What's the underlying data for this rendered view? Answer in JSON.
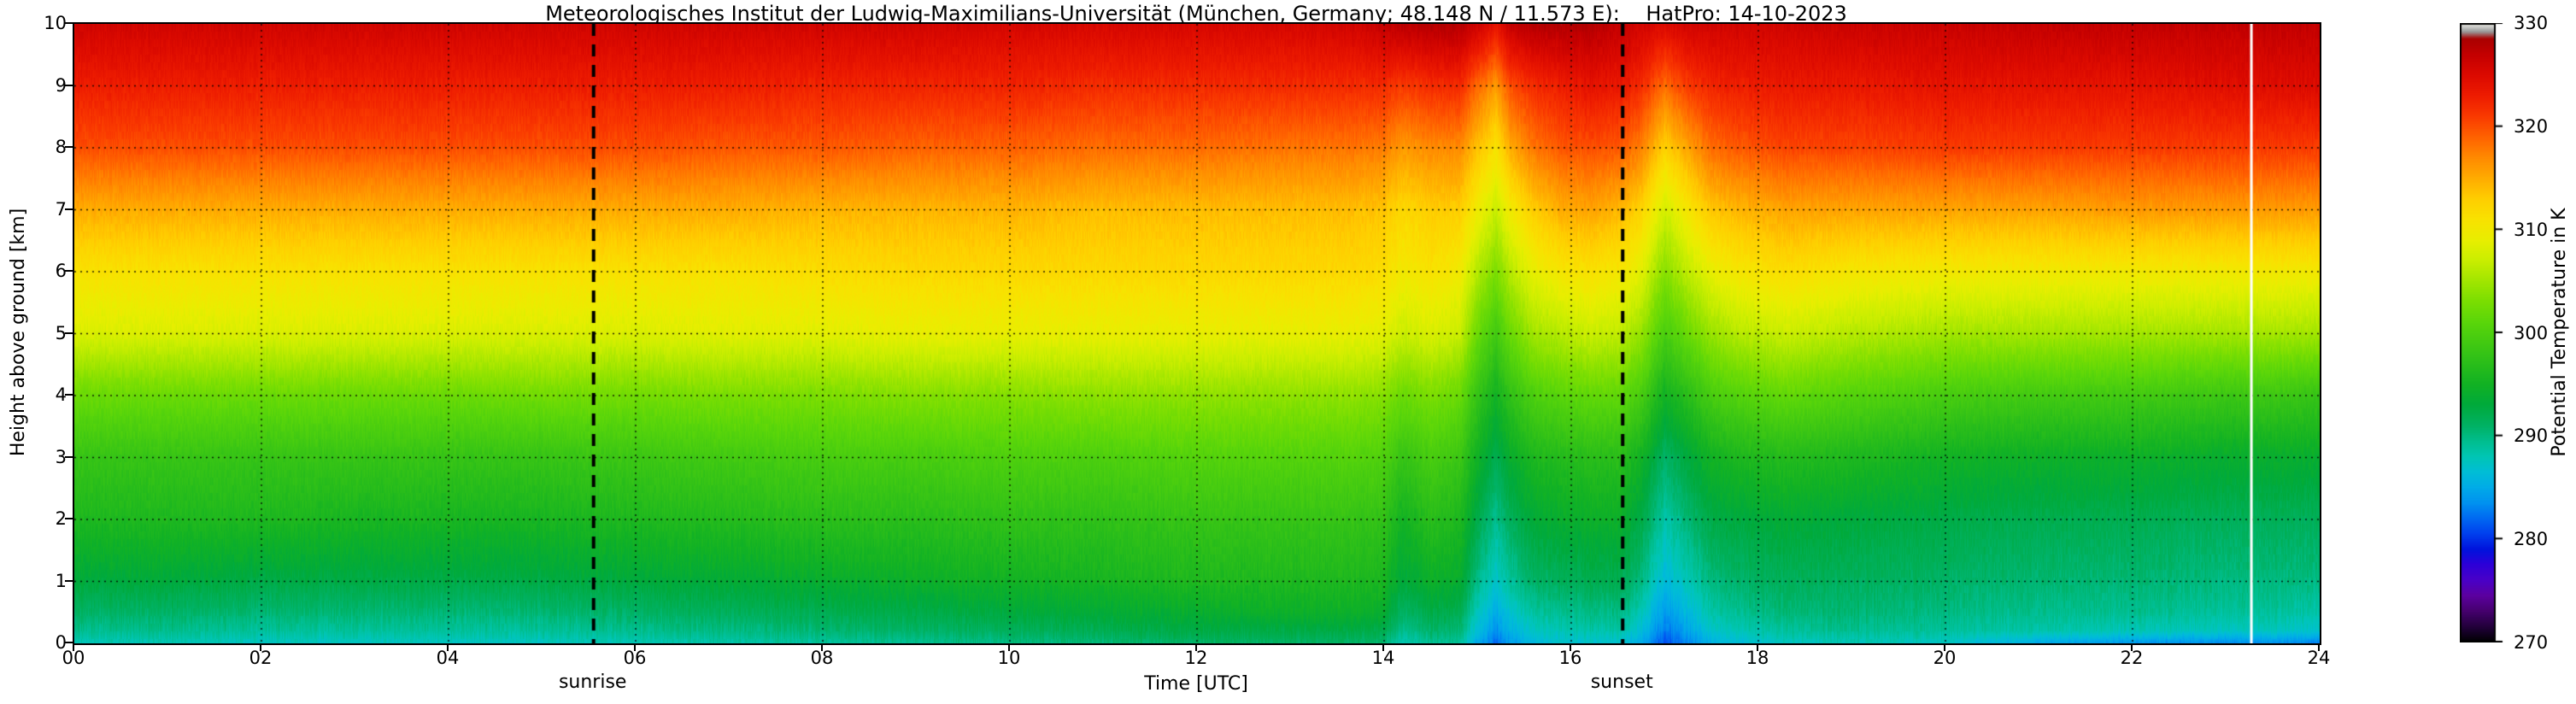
{
  "title": "Meteorologisches Institut der Ludwig-Maximilians-Universität (München, Germany; 48.148 N / 11.573 E):    HatPro: 14-10-2023",
  "axes": {
    "xlabel": "Time [UTC]",
    "ylabel": "Height above ground [km]",
    "x_ticks": [
      {
        "value": 0,
        "label": "00"
      },
      {
        "value": 2,
        "label": "02"
      },
      {
        "value": 4,
        "label": "04"
      },
      {
        "value": 6,
        "label": "06"
      },
      {
        "value": 8,
        "label": "08"
      },
      {
        "value": 10,
        "label": "10"
      },
      {
        "value": 12,
        "label": "12"
      },
      {
        "value": 14,
        "label": "14"
      },
      {
        "value": 16,
        "label": "16"
      },
      {
        "value": 18,
        "label": "18"
      },
      {
        "value": 20,
        "label": "20"
      },
      {
        "value": 22,
        "label": "22"
      },
      {
        "value": 24,
        "label": "24"
      }
    ],
    "y_ticks": [
      {
        "value": 0,
        "label": "0"
      },
      {
        "value": 1,
        "label": "1"
      },
      {
        "value": 2,
        "label": "2"
      },
      {
        "value": 3,
        "label": "3"
      },
      {
        "value": 4,
        "label": "4"
      },
      {
        "value": 5,
        "label": "5"
      },
      {
        "value": 6,
        "label": "6"
      },
      {
        "value": 7,
        "label": "7"
      },
      {
        "value": 8,
        "label": "8"
      },
      {
        "value": 9,
        "label": "9"
      },
      {
        "value": 10,
        "label": "10"
      }
    ]
  },
  "colorbar": {
    "label": "Potential Temperature in K",
    "min": 270,
    "max": 330,
    "ticks": [
      270,
      280,
      290,
      300,
      310,
      320,
      330
    ]
  },
  "annotations": {
    "sunrise": {
      "time_utc": 5.55,
      "label": "sunrise"
    },
    "sunset": {
      "time_utc": 16.55,
      "label": "sunset"
    },
    "gap_line_time_utc": 23.27,
    "gap_line_color": "#ffffff"
  },
  "colormap_stops": [
    [
      270,
      "#000000"
    ],
    [
      271.5,
      "#23003c"
    ],
    [
      273,
      "#46006e"
    ],
    [
      274.5,
      "#5c00a0"
    ],
    [
      276,
      "#4a00c8"
    ],
    [
      277.5,
      "#2e00d8"
    ],
    [
      279,
      "#0014dd"
    ],
    [
      280.5,
      "#0040ee"
    ],
    [
      282,
      "#006af2"
    ],
    [
      283.5,
      "#0092f0"
    ],
    [
      285,
      "#00ace8"
    ],
    [
      286.5,
      "#00bed6"
    ],
    [
      288,
      "#00c6b4"
    ],
    [
      289.5,
      "#00be8e"
    ],
    [
      291,
      "#00b264"
    ],
    [
      293,
      "#00aa3c"
    ],
    [
      295,
      "#12b224"
    ],
    [
      297,
      "#2abe1a"
    ],
    [
      299,
      "#42ca12"
    ],
    [
      301,
      "#5ad60a"
    ],
    [
      303,
      "#7ade02"
    ],
    [
      305,
      "#a2e600"
    ],
    [
      307,
      "#caee00"
    ],
    [
      309,
      "#e9ee00"
    ],
    [
      311,
      "#f9e200"
    ],
    [
      313,
      "#ffce00"
    ],
    [
      315,
      "#ffac00"
    ],
    [
      317,
      "#ff8a00"
    ],
    [
      319,
      "#ff6200"
    ],
    [
      321,
      "#fa3a00"
    ],
    [
      323,
      "#ee1c00"
    ],
    [
      325,
      "#dc0a00"
    ],
    [
      327,
      "#c40000"
    ],
    [
      328.5,
      "#aa0000"
    ],
    [
      329.2,
      "#999999"
    ],
    [
      330,
      "#f0f0ea"
    ]
  ],
  "chart_data": {
    "type": "heatmap",
    "title": "Meteorologisches Institut der Ludwig-Maximilians-Universität (München, Germany; 48.148 N / 11.573 E): HatPro: 14-10-2023",
    "xlabel": "Time [UTC]",
    "ylabel": "Height above ground [km]",
    "zlabel": "Potential Temperature in K",
    "xlim": [
      0,
      24
    ],
    "ylim": [
      0,
      10
    ],
    "clim": [
      270,
      330
    ],
    "grid": "dashed",
    "x_hours": [
      0,
      1,
      2,
      3,
      4,
      5,
      6,
      7,
      8,
      9,
      10,
      11,
      12,
      13,
      13.7,
      14.0,
      14.2,
      14.5,
      14.8,
      15.05,
      15.2,
      15.35,
      15.6,
      15.9,
      16.2,
      16.5,
      16.75,
      17.0,
      17.25,
      17.5,
      17.8,
      18.3,
      19,
      20,
      21,
      22,
      23,
      23.5,
      24
    ],
    "heights_km": [
      0,
      0.2,
      0.5,
      1,
      2,
      3,
      4,
      5,
      6,
      7,
      8,
      9,
      10
    ],
    "theta_K": [
      [
        288,
        289.5,
        291,
        293,
        296,
        298,
        302,
        308,
        311,
        315,
        320,
        323,
        326
      ],
      [
        288,
        289.5,
        291,
        293,
        296,
        298,
        302,
        308,
        311,
        315,
        320,
        323,
        326
      ],
      [
        287.5,
        289,
        290.5,
        292.5,
        296,
        298,
        302,
        308,
        311,
        315,
        320,
        323,
        326
      ],
      [
        287.5,
        289,
        290.5,
        292.5,
        295.5,
        298,
        302,
        308,
        311,
        315,
        320,
        323,
        326
      ],
      [
        287.5,
        289,
        290.5,
        292.5,
        295.5,
        298,
        302,
        308,
        311,
        315,
        320,
        323,
        326
      ],
      [
        287.5,
        289,
        290.5,
        292.5,
        295.5,
        298,
        302.5,
        308,
        311,
        315,
        320,
        323,
        326
      ],
      [
        288,
        289.5,
        291,
        293,
        296,
        298.5,
        302.5,
        308,
        311,
        315,
        320,
        323,
        326
      ],
      [
        288.5,
        290,
        291.5,
        293.5,
        296.5,
        299,
        303,
        308.5,
        311,
        315,
        319.5,
        323,
        326
      ],
      [
        289,
        290.5,
        292,
        294,
        297,
        299.5,
        303,
        308.5,
        311.5,
        314.5,
        319.5,
        322.5,
        326
      ],
      [
        289.5,
        291,
        292.5,
        294.5,
        297,
        299.5,
        303.5,
        309,
        312,
        314.5,
        319,
        322.5,
        326
      ],
      [
        290,
        291.5,
        293,
        295,
        297.5,
        300,
        303.5,
        309,
        312,
        314.5,
        319,
        322.5,
        325.5
      ],
      [
        290.5,
        292,
        293.5,
        295.5,
        297.5,
        300,
        304,
        309,
        312,
        314,
        318.5,
        322,
        325.5
      ],
      [
        291,
        292.5,
        294,
        296,
        298,
        300.5,
        304,
        309,
        312,
        314,
        318.5,
        322,
        325.5
      ],
      [
        291,
        292.5,
        294.5,
        296,
        298,
        300.5,
        304,
        309,
        312,
        314,
        318,
        322,
        325.5
      ],
      [
        291,
        292.5,
        294.5,
        296,
        298,
        300.5,
        304,
        309,
        312,
        314,
        318,
        322,
        326
      ],
      [
        290.5,
        292,
        294,
        295.5,
        297.5,
        300,
        303.5,
        308.5,
        311.5,
        313.5,
        317.5,
        322,
        327
      ],
      [
        288,
        289.5,
        291,
        293,
        295,
        298,
        302,
        307,
        310,
        312,
        316,
        321,
        327.5
      ],
      [
        289.5,
        291,
        292.5,
        294.5,
        297,
        299.5,
        303,
        308,
        311,
        313,
        317,
        322,
        328
      ],
      [
        289,
        290.5,
        292,
        294,
        296,
        298.5,
        302,
        307,
        310,
        313,
        317,
        322,
        328
      ],
      [
        284,
        285.5,
        287,
        289,
        291.5,
        294,
        297,
        301,
        305,
        309,
        313,
        318,
        326
      ],
      [
        282,
        283.5,
        285,
        287,
        289.5,
        292,
        295,
        299,
        303,
        307,
        311,
        316,
        324
      ],
      [
        284,
        285.5,
        287,
        289,
        291.5,
        294,
        297.5,
        302,
        306,
        310,
        315,
        320,
        327
      ],
      [
        286,
        287.5,
        289,
        291,
        293.5,
        296,
        300,
        305,
        309,
        313,
        318,
        322,
        328
      ],
      [
        287,
        288,
        289.5,
        291.5,
        294,
        296.5,
        301,
        306,
        310.5,
        315,
        319.5,
        323,
        328
      ],
      [
        287,
        288.5,
        290,
        292,
        294.5,
        297,
        301.5,
        307,
        311,
        315.5,
        320,
        324,
        328
      ],
      [
        287,
        288.5,
        290,
        292,
        294.5,
        297,
        301.5,
        306.5,
        310.5,
        314.5,
        319.5,
        323.5,
        327
      ],
      [
        285,
        286.5,
        288,
        290,
        292.5,
        295,
        299.5,
        304.5,
        308.5,
        312.5,
        317.5,
        322,
        326
      ],
      [
        281,
        282.5,
        284,
        286,
        288.5,
        291,
        295,
        299.5,
        303.5,
        307.5,
        312.5,
        318.5,
        325
      ],
      [
        283,
        284.5,
        286,
        288,
        290.5,
        293,
        297,
        302,
        306.5,
        310.5,
        315.5,
        321,
        326
      ],
      [
        285.5,
        287,
        288.5,
        290,
        292.5,
        295,
        299.5,
        304.5,
        309,
        313.5,
        318.5,
        322.5,
        326
      ],
      [
        286.5,
        288,
        289.5,
        291,
        293,
        296,
        300.5,
        306,
        310.5,
        314.5,
        319.5,
        323,
        326
      ],
      [
        287.5,
        289,
        290.5,
        291.5,
        293.5,
        296.5,
        301.5,
        307,
        311.5,
        315.5,
        320.5,
        323.5,
        326
      ],
      [
        288,
        289.5,
        290.5,
        291.5,
        293,
        296,
        300.5,
        306,
        310.5,
        315.5,
        320.5,
        323.5,
        326.5
      ],
      [
        287.5,
        289,
        290,
        291,
        292.5,
        295,
        299.5,
        305,
        310,
        315.5,
        321,
        324,
        326.5
      ],
      [
        285,
        288.5,
        289.5,
        290.5,
        292,
        294.5,
        299,
        305,
        310,
        315.5,
        321,
        324,
        327
      ],
      [
        284,
        288,
        289.5,
        290.5,
        292,
        294.5,
        299,
        305,
        310,
        316,
        321,
        324,
        327
      ],
      [
        283.5,
        287.5,
        289,
        290,
        291.5,
        294,
        298.5,
        305,
        310,
        316,
        321,
        324.5,
        327
      ],
      [
        283.5,
        287.5,
        289,
        290,
        291.5,
        294,
        298.5,
        305,
        310,
        316,
        321,
        324.5,
        327
      ],
      [
        283,
        287,
        288.5,
        290,
        291.5,
        294,
        298,
        305,
        310,
        316,
        321,
        325,
        327
      ]
    ],
    "legend_position": "colorbar-right"
  }
}
